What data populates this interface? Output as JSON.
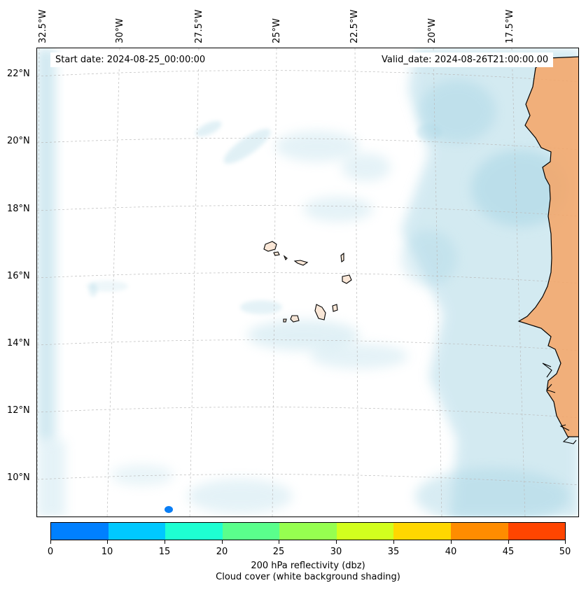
{
  "header": {
    "start_date": "Start date: 2024-08-25_00:00:00",
    "valid_date": "Valid_date: 2024-08-26T21:00:00.00"
  },
  "axes": {
    "lon_labels": [
      "32.5°W",
      "30°W",
      "27.5°W",
      "25°W",
      "22.5°W",
      "20°W",
      "17.5°W"
    ],
    "lat_labels": [
      "22°N",
      "20°N",
      "18°N",
      "16°N",
      "14°N",
      "12°N",
      "10°N"
    ]
  },
  "colorbar": {
    "ticks": [
      "0",
      "10",
      "15",
      "20",
      "25",
      "30",
      "35",
      "40",
      "45",
      "50"
    ],
    "colors": [
      "#0080ff",
      "#00c8ff",
      "#1effd2",
      "#5aff8c",
      "#96ff50",
      "#d2ff1e",
      "#ffd700",
      "#ff8c00",
      "#ff4500"
    ],
    "title_line1": "200 hPa reflectivity (dbz)",
    "title_line2": "Cloud cover (white background shading)"
  },
  "colors": {
    "cloud": "#a9d6e5",
    "land_warm": "#f6a465",
    "echo": "#0a7ef5",
    "grid": "#bbbbbb"
  }
}
